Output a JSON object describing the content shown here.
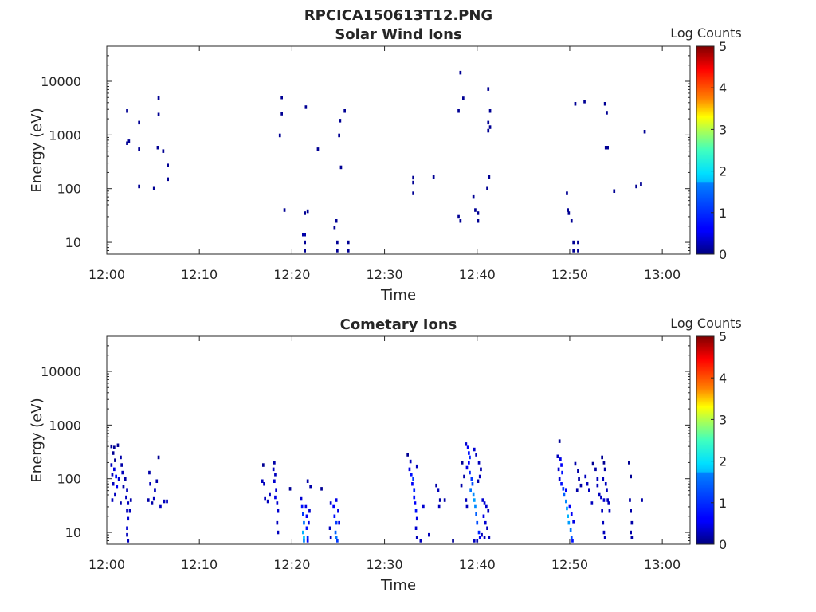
{
  "page_title": "RPCICA150613T12.PNG",
  "chart_data": [
    {
      "type": "heatmap",
      "title": "Solar Wind Ions",
      "xlabel": "Time",
      "ylabel": "Energy (eV)",
      "x_ticks": [
        "12:00",
        "12:10",
        "12:20",
        "12:30",
        "12:40",
        "12:50",
        "13:00"
      ],
      "y_ticks": [
        "10",
        "100",
        "1000",
        "10000"
      ],
      "y_scale": "log",
      "ylim": [
        6,
        45000
      ],
      "xlim": [
        "12:00",
        "13:03"
      ],
      "grid": false,
      "colorbar": {
        "label": "Log Counts",
        "range": [
          0,
          5
        ],
        "ticks": [
          "0",
          "1",
          "2",
          "3",
          "4",
          "5"
        ],
        "colormap": "jet"
      },
      "cells": [
        [
          2.2,
          2800,
          0.1
        ],
        [
          2.2,
          700,
          0.1
        ],
        [
          2.4,
          760,
          0.1
        ],
        [
          3.5,
          1700,
          0.1
        ],
        [
          3.5,
          540,
          0.1
        ],
        [
          3.5,
          110,
          0.1
        ],
        [
          5.1,
          100,
          0.1
        ],
        [
          5.6,
          4900,
          0.1
        ],
        [
          5.6,
          2400,
          0.1
        ],
        [
          5.5,
          580,
          0.1
        ],
        [
          6.1,
          500,
          0.1
        ],
        [
          6.6,
          270,
          0.1
        ],
        [
          6.6,
          150,
          0.1
        ],
        [
          18.9,
          5000,
          0.1
        ],
        [
          18.9,
          2500,
          0.1
        ],
        [
          18.7,
          980,
          0.1
        ],
        [
          19.2,
          40,
          0.1
        ],
        [
          21.5,
          3300,
          0.1
        ],
        [
          21.4,
          35,
          0.1
        ],
        [
          21.7,
          38,
          0.1
        ],
        [
          21.2,
          14,
          0.2
        ],
        [
          21.4,
          14,
          0.2
        ],
        [
          21.4,
          10,
          0.1
        ],
        [
          21.4,
          7,
          0.1
        ],
        [
          22.8,
          540,
          0.1
        ],
        [
          24.8,
          25,
          0.1
        ],
        [
          24.6,
          19,
          0.1
        ],
        [
          24.9,
          10,
          0.1
        ],
        [
          24.9,
          7,
          0.1
        ],
        [
          25.2,
          1850,
          0.1
        ],
        [
          25.1,
          980,
          0.1
        ],
        [
          25.3,
          250,
          0.1
        ],
        [
          25.7,
          2800,
          0.1
        ],
        [
          26.1,
          10,
          0.1
        ],
        [
          26.1,
          7,
          0.1
        ],
        [
          33.1,
          160,
          0.1
        ],
        [
          33.1,
          130,
          0.1
        ],
        [
          33.1,
          82,
          0.1
        ],
        [
          35.3,
          165,
          0.1
        ],
        [
          38.2,
          14500,
          0.1
        ],
        [
          38.5,
          4800,
          0.1
        ],
        [
          38.0,
          2800,
          0.1
        ],
        [
          38.0,
          30,
          0.1
        ],
        [
          38.2,
          25,
          0.1
        ],
        [
          39.6,
          70,
          0.1
        ],
        [
          39.8,
          40,
          0.1
        ],
        [
          40.1,
          35,
          0.1
        ],
        [
          40.1,
          25,
          0.1
        ],
        [
          41.2,
          7200,
          0.1
        ],
        [
          41.4,
          2800,
          0.1
        ],
        [
          41.2,
          1700,
          0.1
        ],
        [
          41.4,
          1400,
          0.1
        ],
        [
          41.2,
          1200,
          0.1
        ],
        [
          41.3,
          165,
          0.1
        ],
        [
          41.1,
          100,
          0.1
        ],
        [
          49.7,
          82,
          0.1
        ],
        [
          49.8,
          40,
          0.1
        ],
        [
          49.9,
          35,
          0.1
        ],
        [
          50.2,
          25,
          0.1
        ],
        [
          50.4,
          10,
          0.1
        ],
        [
          50.4,
          7,
          0.1
        ],
        [
          50.9,
          10,
          0.1
        ],
        [
          50.9,
          7,
          0.1
        ],
        [
          50.6,
          3800,
          0.1
        ],
        [
          51.6,
          4200,
          0.1
        ],
        [
          53.8,
          3800,
          0.1
        ],
        [
          54.0,
          2600,
          0.1
        ],
        [
          53.9,
          580,
          0.1
        ],
        [
          54.1,
          580,
          0.1
        ],
        [
          54.8,
          90,
          0.1
        ],
        [
          57.2,
          110,
          0.1
        ],
        [
          57.7,
          120,
          0.1
        ],
        [
          58.1,
          1150,
          0.1
        ]
      ]
    },
    {
      "type": "heatmap",
      "title": "Cometary Ions",
      "xlabel": "Time",
      "ylabel": "Energy (eV)",
      "x_ticks": [
        "12:00",
        "12:10",
        "12:20",
        "12:30",
        "12:40",
        "12:50",
        "13:00"
      ],
      "y_ticks": [
        "10",
        "100",
        "1000",
        "10000"
      ],
      "y_scale": "log",
      "ylim": [
        6,
        45000
      ],
      "xlim": [
        "12:00",
        "13:03"
      ],
      "grid": false,
      "colorbar": {
        "label": "Log Counts",
        "range": [
          0,
          5
        ],
        "ticks": [
          "0",
          "1",
          "2",
          "3",
          "4",
          "5"
        ],
        "colormap": "jet"
      },
      "cells": [
        [
          0.5,
          400,
          0.1
        ],
        [
          0.8,
          380,
          0.1
        ],
        [
          1.2,
          420,
          0.1
        ],
        [
          0.7,
          300,
          0.1
        ],
        [
          0.9,
          220,
          0.1
        ],
        [
          0.5,
          180,
          0.3
        ],
        [
          0.8,
          150,
          0.5
        ],
        [
          0.6,
          120,
          0.3
        ],
        [
          1.0,
          110,
          0.7
        ],
        [
          1.3,
          100,
          0.4
        ],
        [
          0.7,
          80,
          0.3
        ],
        [
          1.1,
          70,
          0.6
        ],
        [
          0.9,
          50,
          0.3
        ],
        [
          0.6,
          40,
          0.3
        ],
        [
          1.5,
          250,
          0.2
        ],
        [
          1.6,
          180,
          0.2
        ],
        [
          1.7,
          130,
          0.3
        ],
        [
          1.8,
          70,
          0.2
        ],
        [
          1.5,
          35,
          0.2
        ],
        [
          2.0,
          100,
          0.2
        ],
        [
          2.2,
          60,
          0.3
        ],
        [
          2.1,
          45,
          0.3
        ],
        [
          2.3,
          35,
          0.3
        ],
        [
          2.2,
          25,
          0.3
        ],
        [
          2.3,
          18,
          0.4
        ],
        [
          2.2,
          12,
          0.4
        ],
        [
          2.2,
          9,
          0.3
        ],
        [
          2.3,
          7,
          0.3
        ],
        [
          2.6,
          40,
          0.2
        ],
        [
          2.5,
          25,
          0.3
        ],
        [
          4.6,
          130,
          0.2
        ],
        [
          4.7,
          80,
          0.3
        ],
        [
          4.5,
          40,
          0.2
        ],
        [
          4.9,
          35,
          0.2
        ],
        [
          5.4,
          90,
          0.2
        ],
        [
          5.2,
          60,
          0.3
        ],
        [
          5.1,
          42,
          0.3
        ],
        [
          5.6,
          250,
          0.1
        ],
        [
          5.8,
          30,
          0.3
        ],
        [
          6.2,
          38,
          0.3
        ],
        [
          6.5,
          38,
          0.3
        ],
        [
          16.9,
          180,
          0.1
        ],
        [
          16.8,
          90,
          0.3
        ],
        [
          17.0,
          80,
          0.3
        ],
        [
          17.1,
          42,
          0.3
        ],
        [
          17.4,
          38,
          0.3
        ],
        [
          17.6,
          50,
          0.3
        ],
        [
          18.1,
          200,
          0.2
        ],
        [
          18.0,
          150,
          0.3
        ],
        [
          18.2,
          120,
          0.3
        ],
        [
          18.1,
          90,
          0.4
        ],
        [
          18.3,
          60,
          0.4
        ],
        [
          18.2,
          45,
          0.5
        ],
        [
          18.4,
          35,
          0.4
        ],
        [
          18.5,
          25,
          0.4
        ],
        [
          18.4,
          15,
          0.3
        ],
        [
          18.5,
          10,
          0.3
        ],
        [
          19.8,
          65,
          0.1
        ],
        [
          21.0,
          42,
          0.4
        ],
        [
          21.1,
          30,
          0.7
        ],
        [
          21.2,
          22,
          0.9
        ],
        [
          21.3,
          15,
          1.2
        ],
        [
          21.2,
          10,
          1.5
        ],
        [
          21.3,
          8,
          1.6
        ],
        [
          21.3,
          7,
          1.3
        ],
        [
          21.5,
          30,
          0.5
        ],
        [
          21.6,
          20,
          0.6
        ],
        [
          21.6,
          12,
          0.7
        ],
        [
          21.7,
          8,
          0.8
        ],
        [
          21.7,
          7,
          0.6
        ],
        [
          21.9,
          25,
          0.4
        ],
        [
          21.8,
          15,
          0.5
        ],
        [
          21.7,
          90,
          0.2
        ],
        [
          22.0,
          70,
          0.2
        ],
        [
          23.2,
          65,
          0.1
        ],
        [
          24.2,
          35,
          0.4
        ],
        [
          24.5,
          30,
          0.6
        ],
        [
          24.8,
          40,
          0.5
        ],
        [
          24.6,
          20,
          0.7
        ],
        [
          24.8,
          15,
          0.9
        ],
        [
          24.7,
          10,
          1.1
        ],
        [
          24.8,
          8,
          1.2
        ],
        [
          24.9,
          7,
          0.9
        ],
        [
          25.0,
          25,
          0.5
        ],
        [
          25.1,
          15,
          0.5
        ],
        [
          24.1,
          12,
          0.3
        ],
        [
          24.2,
          8,
          0.3
        ],
        [
          32.5,
          280,
          0.1
        ],
        [
          32.8,
          210,
          0.3
        ],
        [
          32.7,
          150,
          0.5
        ],
        [
          32.9,
          120,
          0.7
        ],
        [
          33.1,
          100,
          0.9
        ],
        [
          33.0,
          80,
          0.6
        ],
        [
          33.2,
          60,
          0.8
        ],
        [
          33.2,
          45,
          0.7
        ],
        [
          33.3,
          35,
          0.6
        ],
        [
          33.4,
          25,
          0.7
        ],
        [
          33.5,
          18,
          0.5
        ],
        [
          33.4,
          12,
          0.4
        ],
        [
          33.5,
          8,
          0.3
        ],
        [
          33.9,
          7,
          0.3
        ],
        [
          33.5,
          170,
          0.3
        ],
        [
          34.2,
          30,
          0.4
        ],
        [
          34.8,
          9,
          0.3
        ],
        [
          35.6,
          75,
          0.2
        ],
        [
          35.8,
          60,
          0.3
        ],
        [
          36.0,
          40,
          0.2
        ],
        [
          35.9,
          30,
          0.3
        ],
        [
          36.5,
          40,
          0.2
        ],
        [
          37.4,
          7,
          0.1
        ],
        [
          38.4,
          200,
          0.1
        ],
        [
          38.6,
          110,
          0.2
        ],
        [
          38.3,
          75,
          0.2
        ],
        [
          38.8,
          40,
          0.3
        ],
        [
          38.9,
          30,
          0.3
        ],
        [
          38.8,
          440,
          0.4
        ],
        [
          39.0,
          380,
          0.6
        ],
        [
          39.1,
          300,
          0.7
        ],
        [
          39.2,
          250,
          0.8
        ],
        [
          39.1,
          200,
          0.6
        ],
        [
          38.9,
          160,
          0.5
        ],
        [
          39.2,
          130,
          0.8
        ],
        [
          39.4,
          100,
          0.9
        ],
        [
          39.5,
          80,
          1.0
        ],
        [
          39.3,
          60,
          1.2
        ],
        [
          39.6,
          50,
          1.3
        ],
        [
          39.7,
          40,
          1.4
        ],
        [
          39.8,
          30,
          1.3
        ],
        [
          39.9,
          22,
          1.1
        ],
        [
          40.0,
          15,
          1.0
        ],
        [
          40.2,
          10,
          0.8
        ],
        [
          40.3,
          8,
          0.6
        ],
        [
          39.7,
          350,
          0.4
        ],
        [
          39.9,
          280,
          0.3
        ],
        [
          40.2,
          200,
          0.3
        ],
        [
          40.4,
          150,
          0.2
        ],
        [
          40.3,
          110,
          0.3
        ],
        [
          40.1,
          90,
          0.2
        ],
        [
          40.6,
          40,
          0.4
        ],
        [
          40.8,
          35,
          0.4
        ],
        [
          41.0,
          30,
          0.4
        ],
        [
          41.2,
          25,
          0.3
        ],
        [
          40.7,
          20,
          0.5
        ],
        [
          40.9,
          15,
          0.4
        ],
        [
          41.1,
          12,
          0.3
        ],
        [
          40.5,
          9,
          0.3
        ],
        [
          40.8,
          8,
          0.3
        ],
        [
          41.3,
          8,
          0.3
        ],
        [
          39.7,
          7,
          0.3
        ],
        [
          40.0,
          7,
          0.4
        ],
        [
          48.9,
          500,
          0.1
        ],
        [
          48.7,
          260,
          0.3
        ],
        [
          49.0,
          230,
          0.5
        ],
        [
          49.1,
          180,
          0.6
        ],
        [
          48.8,
          150,
          0.4
        ],
        [
          49.2,
          130,
          0.7
        ],
        [
          48.9,
          100,
          0.4
        ],
        [
          49.1,
          80,
          0.7
        ],
        [
          49.3,
          65,
          0.9
        ],
        [
          49.4,
          50,
          1.1
        ],
        [
          49.6,
          38,
          1.3
        ],
        [
          49.7,
          28,
          1.4
        ],
        [
          49.8,
          20,
          1.5
        ],
        [
          49.9,
          15,
          1.4
        ],
        [
          50.1,
          11,
          1.2
        ],
        [
          50.2,
          8,
          1.0
        ],
        [
          50.3,
          7,
          0.7
        ],
        [
          49.6,
          60,
          0.6
        ],
        [
          50.0,
          30,
          0.6
        ],
        [
          50.2,
          22,
          0.6
        ],
        [
          50.4,
          16,
          0.5
        ],
        [
          50.6,
          190,
          0.2
        ],
        [
          50.9,
          140,
          0.2
        ],
        [
          51.0,
          100,
          0.2
        ],
        [
          51.2,
          75,
          0.2
        ],
        [
          50.8,
          60,
          0.2
        ],
        [
          51.7,
          110,
          0.3
        ],
        [
          51.9,
          80,
          0.3
        ],
        [
          52.1,
          60,
          0.3
        ],
        [
          52.4,
          35,
          0.3
        ],
        [
          52.5,
          190,
          0.1
        ],
        [
          52.8,
          150,
          0.2
        ],
        [
          53.0,
          100,
          0.3
        ],
        [
          53.0,
          75,
          0.3
        ],
        [
          53.2,
          50,
          0.3
        ],
        [
          53.4,
          45,
          0.3
        ],
        [
          53.5,
          250,
          0.1
        ],
        [
          53.7,
          200,
          0.1
        ],
        [
          53.8,
          150,
          0.2
        ],
        [
          53.6,
          100,
          0.3
        ],
        [
          53.9,
          80,
          0.3
        ],
        [
          54.0,
          60,
          0.3
        ],
        [
          53.7,
          40,
          0.4
        ],
        [
          53.5,
          25,
          0.3
        ],
        [
          53.6,
          15,
          0.3
        ],
        [
          53.7,
          10,
          0.3
        ],
        [
          53.8,
          8,
          0.3
        ],
        [
          54.1,
          40,
          0.3
        ],
        [
          54.2,
          35,
          0.3
        ],
        [
          54.3,
          25,
          0.3
        ],
        [
          56.4,
          200,
          0.1
        ],
        [
          56.6,
          110,
          0.1
        ],
        [
          56.5,
          40,
          0.2
        ],
        [
          56.6,
          25,
          0.2
        ],
        [
          56.7,
          15,
          0.2
        ],
        [
          56.6,
          10,
          0.2
        ],
        [
          56.7,
          8,
          0.2
        ],
        [
          57.8,
          40,
          0.2
        ]
      ]
    }
  ]
}
